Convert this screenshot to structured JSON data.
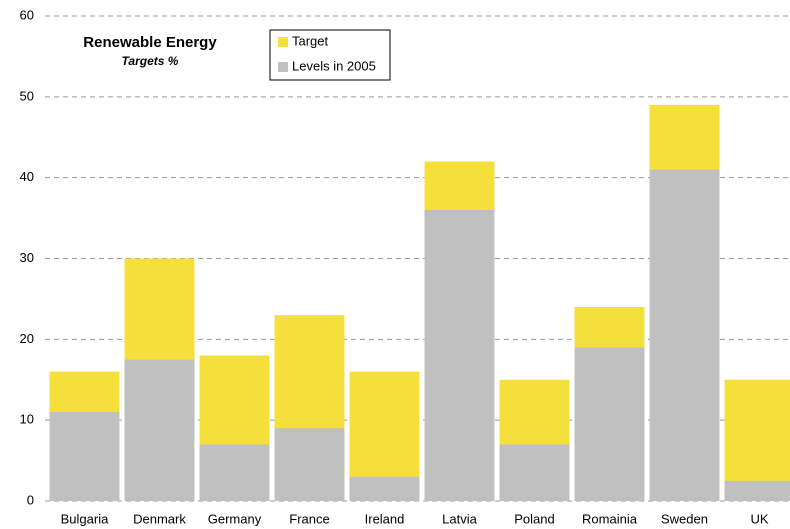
{
  "chart_data": {
    "type": "bar",
    "title": "Renewable Energy",
    "subtitle": "Targets %",
    "categories": [
      "Bulgaria",
      "Denmark",
      "Germany",
      "France",
      "Ireland",
      "Latvia",
      "Poland",
      "Romainia",
      "Sweden",
      "UK"
    ],
    "series": [
      {
        "name": "Target",
        "color": "#f5df3a",
        "values": [
          16,
          30,
          18,
          23,
          16,
          42,
          15,
          24,
          49,
          15
        ]
      },
      {
        "name": "Levels in 2005",
        "color": "#c0c0c0",
        "values": [
          11,
          17.5,
          7,
          9,
          3,
          36,
          7,
          19,
          41,
          2.5
        ]
      }
    ],
    "ylim": [
      0,
      60
    ],
    "yticks": [
      0,
      10,
      20,
      30,
      40,
      50,
      60
    ],
    "grid": true
  }
}
